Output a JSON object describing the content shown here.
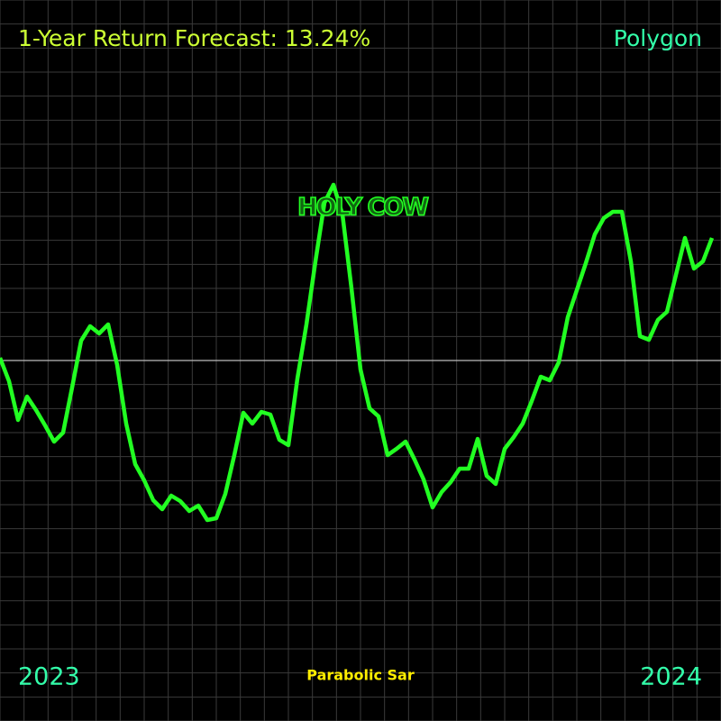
{
  "chart_data": {
    "type": "line",
    "title": "1-Year Return Forecast: 13.24%",
    "subtitle": "Polygon",
    "annotation": "HOLY COW",
    "x_labels": [
      "2023",
      "2024"
    ],
    "indicator": "Parabolic Sar",
    "color": "#22ff22",
    "grid": true,
    "ylim": [
      -400,
      400
    ],
    "values": [
      3,
      -23,
      -66,
      -40,
      -55,
      -72,
      -90,
      -80,
      -30,
      22,
      38,
      30,
      40,
      -5,
      -70,
      -115,
      -133,
      -155,
      -165,
      -150,
      -156,
      -167,
      -161,
      -177,
      -175,
      -148,
      -105,
      -58,
      -70,
      -57,
      -60,
      -88,
      -94,
      -20,
      40,
      110,
      175,
      195,
      162,
      80,
      -10,
      -53,
      -62,
      -105,
      -98,
      -90,
      -110,
      -132,
      -163,
      -146,
      -135,
      -120,
      -120,
      -87,
      -128,
      -137,
      -98,
      -85,
      -70,
      -45,
      -18,
      -22,
      -2,
      48,
      78,
      108,
      140,
      158,
      165,
      165,
      110,
      27,
      23,
      45,
      54,
      95,
      136,
      102,
      110,
      136
    ]
  }
}
